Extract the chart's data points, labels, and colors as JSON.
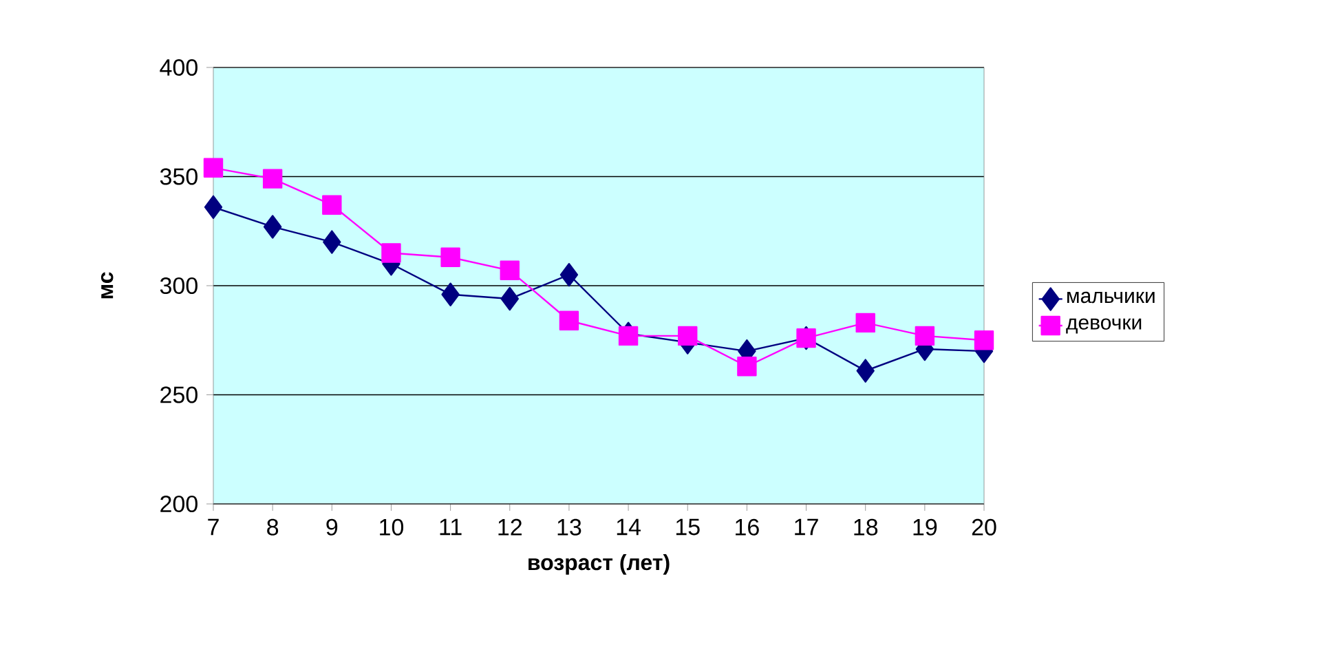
{
  "chart_data": {
    "type": "line",
    "xlabel": "возраст (лет)",
    "ylabel": "мс",
    "categories": [
      "7",
      "8",
      "9",
      "10",
      "11",
      "12",
      "13",
      "14",
      "15",
      "16",
      "17",
      "18",
      "19",
      "20"
    ],
    "series": [
      {
        "name": "мальчики",
        "color": "#000080",
        "marker": "diamond",
        "values": [
          336,
          327,
          320,
          310,
          296,
          294,
          305,
          278,
          274,
          270,
          276,
          261,
          271,
          270
        ]
      },
      {
        "name": "девочки",
        "color": "#ff00ff",
        "marker": "square",
        "values": [
          354,
          349,
          337,
          315,
          313,
          307,
          284,
          277,
          277,
          263,
          276,
          283,
          277,
          275
        ]
      }
    ],
    "ylim": [
      200,
      400
    ],
    "yticks": [
      200,
      250,
      300,
      350,
      400
    ],
    "grid": "y",
    "legend": "right"
  }
}
